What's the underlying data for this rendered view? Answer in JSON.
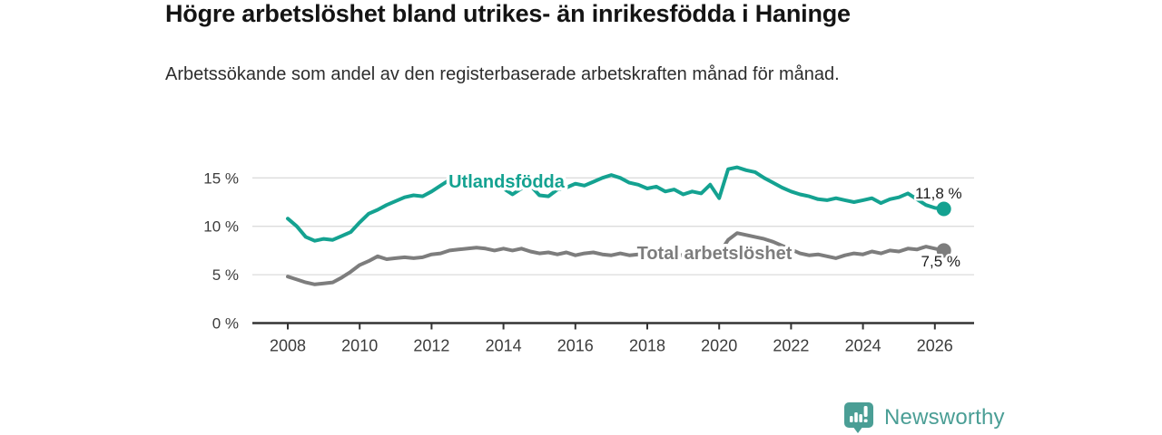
{
  "title": "Högre arbetslöshet bland utrikes- än inrikesfödda i Haninge",
  "subtitle": "Arbetssökande som andel av den registerbaserade arbetskraften månad för månad.",
  "branding": {
    "name": "Newsworthy",
    "icon": "newsworthy-bar-chart-bubble-icon",
    "color": "#4a9e95"
  },
  "chart_data": {
    "type": "line",
    "title": "Högre arbetslöshet bland utrikes- än inrikesfödda i Haninge",
    "xlabel": "",
    "ylabel": "",
    "x_unit": "year (monthly series)",
    "x_start": 2008,
    "x_step": 0.25,
    "x_end": 2026.25,
    "ylim": [
      0,
      16.5
    ],
    "grid": "horizontal",
    "legend": "inline-labels",
    "y_ticks": [
      {
        "value": 0,
        "label": "0 %"
      },
      {
        "value": 5,
        "label": "5 %"
      },
      {
        "value": 10,
        "label": "10 %"
      },
      {
        "value": 15,
        "label": "15 %"
      }
    ],
    "x_ticks": [
      {
        "value": 2008,
        "label": "2008"
      },
      {
        "value": 2010,
        "label": "2010"
      },
      {
        "value": 2012,
        "label": "2012"
      },
      {
        "value": 2014,
        "label": "2014"
      },
      {
        "value": 2016,
        "label": "2016"
      },
      {
        "value": 2018,
        "label": "2018"
      },
      {
        "value": 2020,
        "label": "2020"
      },
      {
        "value": 2022,
        "label": "2022"
      },
      {
        "value": 2024,
        "label": "2024"
      },
      {
        "value": 2026,
        "label": "2026"
      }
    ],
    "series": [
      {
        "name": "Utlandsfödda",
        "color": "#14a291",
        "end_label": "11,8 %",
        "end_value": 11.8,
        "values": [
          10.8,
          10.0,
          8.9,
          8.5,
          8.7,
          8.6,
          9.0,
          9.4,
          10.4,
          11.3,
          11.7,
          12.2,
          12.6,
          13.0,
          13.2,
          13.1,
          13.6,
          14.2,
          14.8,
          14.3,
          14.5,
          14.7,
          14.4,
          14.1,
          13.9,
          13.3,
          13.9,
          14.2,
          13.2,
          13.1,
          13.8,
          14.0,
          14.4,
          14.2,
          14.6,
          15.0,
          15.3,
          15.0,
          14.5,
          14.3,
          13.9,
          14.1,
          13.6,
          13.8,
          13.3,
          13.6,
          13.4,
          14.3,
          12.9,
          15.9,
          16.1,
          15.8,
          15.6,
          15.0,
          14.5,
          14.0,
          13.6,
          13.3,
          13.1,
          12.8,
          12.7,
          12.9,
          12.7,
          12.5,
          12.7,
          12.9,
          12.4,
          12.8,
          13.0,
          13.4,
          12.8,
          12.2,
          11.9,
          11.8
        ]
      },
      {
        "name": "Total arbetslöshet",
        "color": "#7d7d7d",
        "end_label": "7,5 %",
        "end_value": 7.5,
        "values": [
          4.8,
          4.5,
          4.2,
          4.0,
          4.1,
          4.2,
          4.7,
          5.3,
          6.0,
          6.4,
          6.9,
          6.6,
          6.7,
          6.8,
          6.7,
          6.8,
          7.1,
          7.2,
          7.5,
          7.6,
          7.7,
          7.8,
          7.7,
          7.5,
          7.7,
          7.5,
          7.7,
          7.4,
          7.2,
          7.3,
          7.1,
          7.3,
          7.0,
          7.2,
          7.3,
          7.1,
          7.0,
          7.2,
          7.0,
          7.1,
          6.8,
          7.0,
          6.9,
          7.1,
          7.0,
          7.1,
          6.9,
          7.0,
          7.2,
          8.6,
          9.3,
          9.1,
          8.9,
          8.7,
          8.4,
          8.0,
          7.6,
          7.2,
          7.0,
          7.1,
          6.9,
          6.7,
          7.0,
          7.2,
          7.1,
          7.4,
          7.2,
          7.5,
          7.4,
          7.7,
          7.6,
          7.9,
          7.7,
          7.5
        ]
      }
    ]
  }
}
